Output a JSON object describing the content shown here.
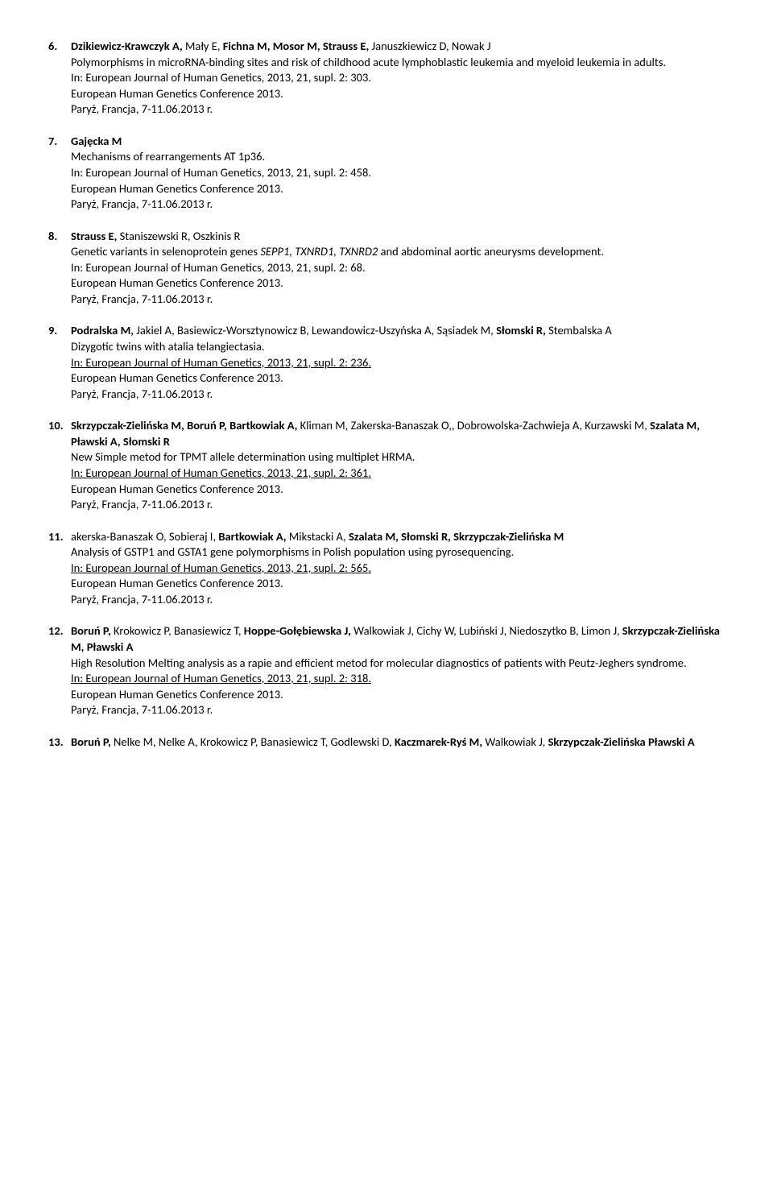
{
  "refs": [
    {
      "num": "6.",
      "authorsParts": [
        {
          "t": "Dzikiewicz-Krawczyk A,",
          "b": true
        },
        {
          "t": " Mały E, ",
          "b": false
        },
        {
          "t": "Fichna M, Mosor M, Strauss E,",
          "b": true
        },
        {
          "t": " Januszkiewicz D, Nowak J",
          "b": false
        }
      ],
      "title": "Polymorphisms in microRNA-binding sites and risk of childhood acute lymphoblastic leukemia and myeloid leukemia in adults.",
      "in": "In: European Journal of Human Genetics, 2013, 21, supl. 2: 303.",
      "conf": "European Human Genetics Conference 2013.",
      "loc": "Paryż, Francja, 7-11.06.2013 r."
    },
    {
      "num": "7.",
      "authorsParts": [
        {
          "t": "Gajęcka M",
          "b": true
        }
      ],
      "title": "Mechanisms of rearrangements AT 1p36.",
      "in": "In: European Journal of Human Genetics, 2013, 21, supl. 2: 458.",
      "conf": "European Human Genetics Conference 2013.",
      "loc": "Paryż, Francja, 7-11.06.2013 r."
    },
    {
      "num": "8.",
      "authorsParts": [
        {
          "t": "Strauss E,",
          "b": true
        },
        {
          "t": " Staniszewski R, Oszkinis R",
          "b": false
        }
      ],
      "titleParts": [
        {
          "t": "Genetic variants in selenoprotein genes ",
          "i": false
        },
        {
          "t": "SEPP1, TXNRD1, TXNRD2",
          "i": true
        },
        {
          "t": " and abdominal aortic aneurysms development.",
          "i": false
        }
      ],
      "in": "In: European Journal of Human Genetics, 2013, 21, supl. 2: 68.",
      "conf": "European Human Genetics Conference 2013.",
      "loc": "Paryż, Francja, 7-11.06.2013 r."
    },
    {
      "num": "9.",
      "authorsParts": [
        {
          "t": "Podralska M,",
          "b": true
        },
        {
          "t": " Jakiel A, Basiewicz-Worsztynowicz B, Lewandowicz-Uszyńska A, Sąsiadek M, ",
          "b": false
        },
        {
          "t": "Słomski R,",
          "b": true
        },
        {
          "t": " Stembalska A",
          "b": false
        }
      ],
      "title": "Dizygotic twins with atalia telangiectasia.",
      "inU": "In: European Journal of Human Genetics, 2013, 21, supl. 2: 236.",
      "conf": "European Human Genetics Conference 2013.",
      "loc": "Paryż, Francja, 7-11.06.2013 r."
    },
    {
      "num": "10.",
      "authorsParts": [
        {
          "t": "Skrzypczak-Zielińska M, Boruń P, Bartkowiak A,",
          "b": true
        },
        {
          "t": " Kliman M, Zakerska-Banaszak O,, Dobrowolska-Zachwieja A, Kurzawski M, ",
          "b": false
        },
        {
          "t": "Szalata M, Pławski A, Słomski R",
          "b": true
        }
      ],
      "title": "New Simple metod for TPMT allele determination using multiplet HRMA.",
      "inU": "In: European Journal of Human Genetics, 2013, 21, supl. 2: 361.",
      "conf": "European Human Genetics Conference 2013.",
      "loc": "Paryż, Francja, 7-11.06.2013 r."
    },
    {
      "num": "11.",
      "authorsParts": [
        {
          "t": "akerska-Banaszak O, Sobieraj I, ",
          "b": false
        },
        {
          "t": "Bartkowiak A,",
          "b": true
        },
        {
          "t": " Mikstacki A, ",
          "b": false
        },
        {
          "t": "Szalata M, Słomski R, Skrzypczak-Zielińska M",
          "b": true
        }
      ],
      "title": "Analysis of GSTP1 and GSTA1 gene polymorphisms in Polish population using pyrosequencing.",
      "inU": "In: European Journal of Human Genetics, 2013, 21, supl. 2: 565.",
      "conf": "European Human Genetics Conference 2013.",
      "loc": "Paryż, Francja, 7-11.06.2013 r."
    },
    {
      "num": "12.",
      "authorsParts": [
        {
          "t": "Boruń P,",
          "b": true
        },
        {
          "t": " Krokowicz P, Banasiewicz T, ",
          "b": false
        },
        {
          "t": "Hoppe-Gołębiewska J,",
          "b": true
        },
        {
          "t": " Walkowiak J, Cichy W, Lubiński J, Niedoszytko B, Limon J, ",
          "b": false
        },
        {
          "t": "Skrzypczak-Zielińska M, Pławski A",
          "b": true
        }
      ],
      "title": "High Resolution Melting analysis as a rapie and efficient metod for molecular diagnostics of patients with Peutz-Jeghers syndrome.",
      "inU": "In: European Journal of Human Genetics, 2013, 21, supl. 2: 318.",
      "conf": "European Human Genetics Conference 2013.",
      "loc": "Paryż, Francja, 7-11.06.2013 r."
    },
    {
      "num": "13.",
      "authorsParts": [
        {
          "t": "Boruń P,",
          "b": true
        },
        {
          "t": " Nelke M, Nelke A, Krokowicz P, Banasiewicz T, Godlewski D, ",
          "b": false
        },
        {
          "t": "Kaczmarek-Ryś M,",
          "b": true
        },
        {
          "t": " Walkowiak J, ",
          "b": false
        },
        {
          "t": "Skrzypczak-Zielińska Pławski A",
          "b": true
        }
      ]
    }
  ]
}
